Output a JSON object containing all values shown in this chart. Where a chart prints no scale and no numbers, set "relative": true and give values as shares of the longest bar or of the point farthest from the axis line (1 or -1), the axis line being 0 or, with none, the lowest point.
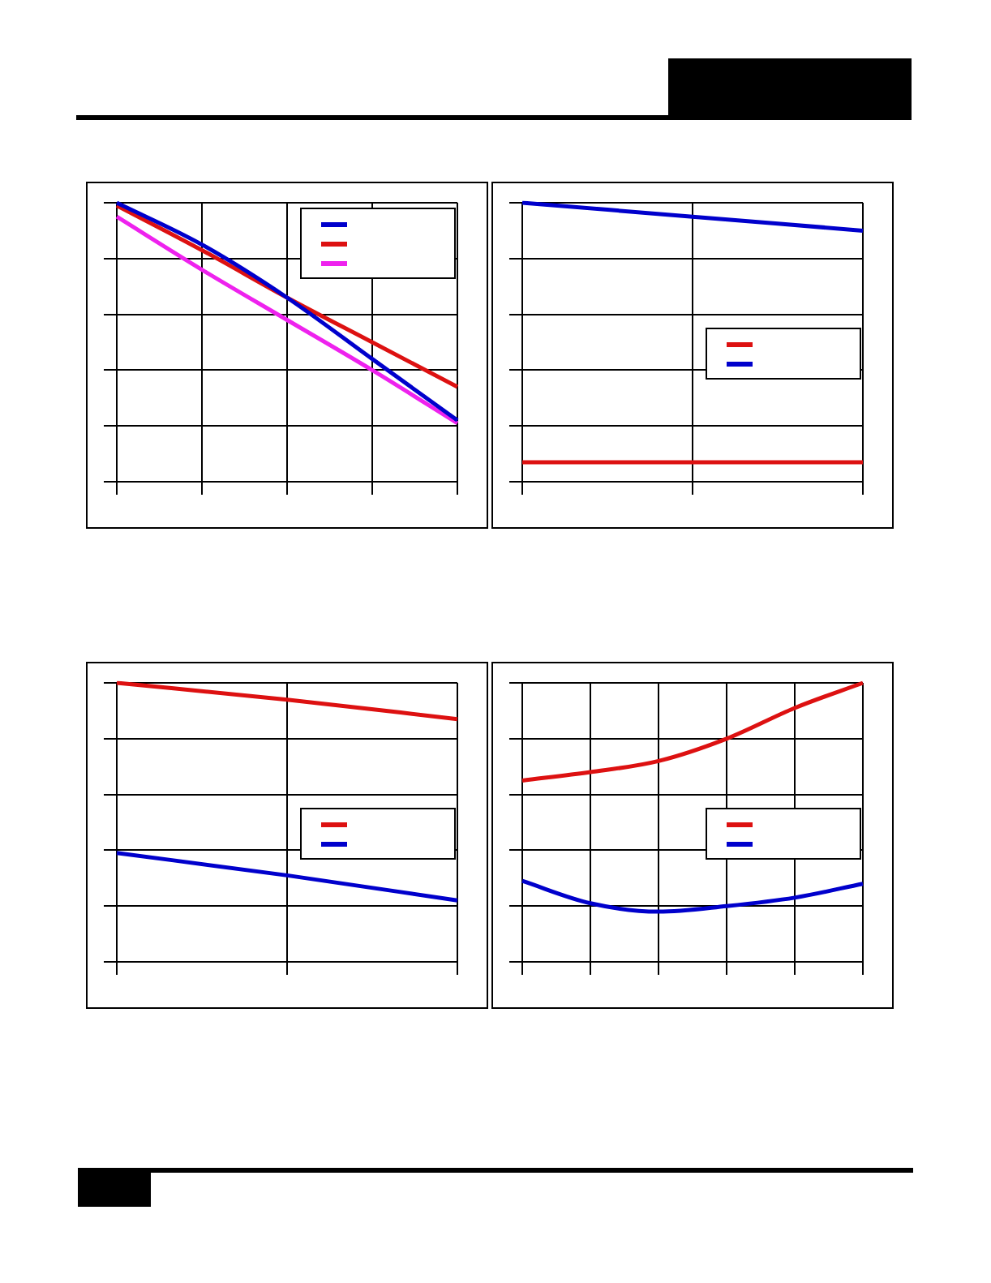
{
  "chart_data": [
    {
      "type": "line",
      "relative": true,
      "grid": true,
      "categories": [
        null,
        null,
        null,
        null,
        null
      ],
      "series": [
        {
          "color": "#0000cc",
          "values": [
            1,
            0.85,
            0.66,
            0.44,
            0.22
          ]
        },
        {
          "color": "#dd1111",
          "values": [
            0.99,
            0.83,
            0.66,
            0.5,
            0.34
          ]
        },
        {
          "color": "#ee22ee",
          "values": [
            0.95,
            0.76,
            0.58,
            0.4,
            0.21
          ]
        }
      ]
    },
    {
      "type": "line",
      "relative": true,
      "grid": true,
      "categories": [
        null,
        null,
        null
      ],
      "series": [
        {
          "color": "#dd1111",
          "values": [
            0.07,
            0.07,
            0.07
          ]
        },
        {
          "color": "#0000cc",
          "values": [
            1,
            0.95,
            0.9
          ]
        }
      ]
    },
    {
      "type": "line",
      "relative": true,
      "grid": true,
      "categories": [
        null,
        null,
        null
      ],
      "series": [
        {
          "color": "#dd1111",
          "values": [
            1,
            0.94,
            0.87
          ]
        },
        {
          "color": "#0000cc",
          "values": [
            0.39,
            0.31,
            0.22
          ]
        }
      ]
    },
    {
      "type": "line",
      "relative": true,
      "grid": true,
      "categories": [
        null,
        null,
        null,
        null,
        null,
        null
      ],
      "series": [
        {
          "color": "#dd1111",
          "values": [
            0.65,
            0.68,
            0.72,
            0.8,
            0.91,
            1
          ]
        },
        {
          "color": "#0000cc",
          "values": [
            0.29,
            0.21,
            0.18,
            0.2,
            0.23,
            0.28
          ]
        }
      ]
    }
  ]
}
